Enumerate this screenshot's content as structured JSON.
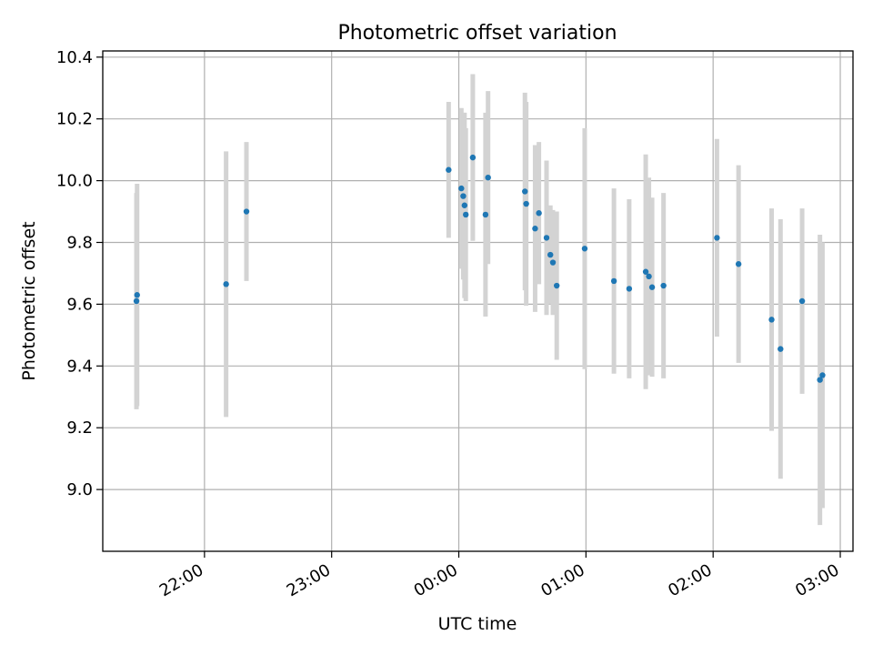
{
  "chart_data": {
    "type": "scatter",
    "title": "Photometric offset variation",
    "xlabel": "UTC time",
    "ylabel": "Photometric offset",
    "x_unit": "UTC time of day (hours; values past 24 are on the following day)",
    "xlim": [
      21.2,
      27.1
    ],
    "ylim": [
      8.8,
      10.42
    ],
    "grid": true,
    "colors": {
      "points": "#1f77b4",
      "errorbars": "#d3d3d3",
      "grid": "#b0b0b0"
    },
    "x_ticks": [
      {
        "value": 22,
        "label": "22:00"
      },
      {
        "value": 23,
        "label": "23:00"
      },
      {
        "value": 24,
        "label": "00:00"
      },
      {
        "value": 25,
        "label": "01:00"
      },
      {
        "value": 26,
        "label": "02:00"
      },
      {
        "value": 27,
        "label": "03:00"
      }
    ],
    "y_ticks": [
      {
        "value": 9.0,
        "label": "9.0"
      },
      {
        "value": 9.2,
        "label": "9.2"
      },
      {
        "value": 9.4,
        "label": "9.4"
      },
      {
        "value": 9.6,
        "label": "9.6"
      },
      {
        "value": 9.8,
        "label": "9.8"
      },
      {
        "value": 10.0,
        "label": "10.0"
      },
      {
        "value": 10.2,
        "label": "10.2"
      },
      {
        "value": 10.4,
        "label": "10.4"
      }
    ],
    "points": [
      {
        "x": 21.47,
        "y": 9.63,
        "err": 0.36
      },
      {
        "x": 21.465,
        "y": 9.61,
        "err": 0.35
      },
      {
        "x": 22.17,
        "y": 9.665,
        "err": 0.43
      },
      {
        "x": 22.33,
        "y": 9.9,
        "err": 0.225
      },
      {
        "x": 23.92,
        "y": 10.035,
        "err": 0.22
      },
      {
        "x": 24.02,
        "y": 9.975,
        "err": 0.26
      },
      {
        "x": 24.035,
        "y": 9.95,
        "err": 0.27
      },
      {
        "x": 24.045,
        "y": 9.92,
        "err": 0.3
      },
      {
        "x": 24.055,
        "y": 9.89,
        "err": 0.28
      },
      {
        "x": 24.11,
        "y": 10.075,
        "err": 0.27
      },
      {
        "x": 24.21,
        "y": 9.89,
        "err": 0.33
      },
      {
        "x": 24.23,
        "y": 10.01,
        "err": 0.28
      },
      {
        "x": 24.52,
        "y": 9.965,
        "err": 0.32
      },
      {
        "x": 24.53,
        "y": 9.925,
        "err": 0.33
      },
      {
        "x": 24.6,
        "y": 9.845,
        "err": 0.27
      },
      {
        "x": 24.63,
        "y": 9.895,
        "err": 0.23
      },
      {
        "x": 24.69,
        "y": 9.815,
        "err": 0.25
      },
      {
        "x": 24.72,
        "y": 9.76,
        "err": 0.16
      },
      {
        "x": 24.74,
        "y": 9.735,
        "err": 0.17
      },
      {
        "x": 24.77,
        "y": 9.66,
        "err": 0.24
      },
      {
        "x": 24.99,
        "y": 9.78,
        "err": 0.39
      },
      {
        "x": 25.22,
        "y": 9.675,
        "err": 0.3
      },
      {
        "x": 25.34,
        "y": 9.65,
        "err": 0.29
      },
      {
        "x": 25.47,
        "y": 9.705,
        "err": 0.38
      },
      {
        "x": 25.495,
        "y": 9.69,
        "err": 0.32
      },
      {
        "x": 25.52,
        "y": 9.655,
        "err": 0.29
      },
      {
        "x": 25.61,
        "y": 9.66,
        "err": 0.3
      },
      {
        "x": 26.03,
        "y": 9.815,
        "err": 0.32
      },
      {
        "x": 26.2,
        "y": 9.73,
        "err": 0.32
      },
      {
        "x": 26.46,
        "y": 9.55,
        "err": 0.36
      },
      {
        "x": 26.53,
        "y": 9.455,
        "err": 0.42
      },
      {
        "x": 26.7,
        "y": 9.61,
        "err": 0.3
      },
      {
        "x": 26.84,
        "y": 9.355,
        "err": 0.47
      },
      {
        "x": 26.86,
        "y": 9.37,
        "err": 0.43
      }
    ]
  }
}
